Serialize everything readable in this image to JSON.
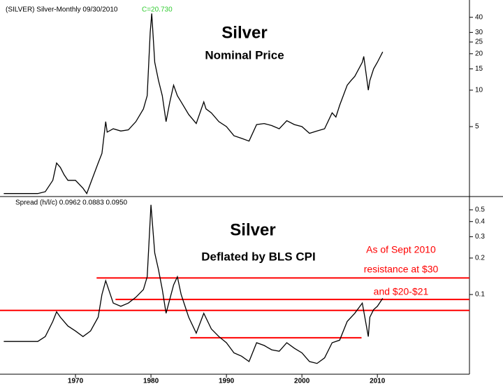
{
  "chart_data": [
    {
      "type": "line",
      "header": "(SILVER) Silver-Monthly   09/30/2010",
      "header_value": "C=20.730",
      "header_value_color": "#33cc33",
      "title": "Silver",
      "subtitle": "Nominal Price",
      "log_scale": true,
      "xlim": [
        1960,
        2022.2
      ],
      "ylim": [
        1.34,
        52
      ],
      "yticks": [
        5,
        10,
        15,
        20,
        25,
        30,
        40
      ],
      "series": [
        {
          "name": "Silver",
          "color": "#000000",
          "x": [
            1960.5,
            1963,
            1965,
            1966,
            1967,
            1967.5,
            1968,
            1968.5,
            1969,
            1970,
            1971,
            1971.5,
            1972,
            1973,
            1973.5,
            1974,
            1974.2,
            1975,
            1976,
            1977,
            1978,
            1979,
            1979.5,
            1979.9,
            1980.1,
            1980.5,
            1981,
            1981.5,
            1982,
            1982.5,
            1983,
            1983.5,
            1984,
            1985,
            1986,
            1987,
            1987.3,
            1988,
            1989,
            1990,
            1991,
            1992,
            1993,
            1994,
            1995,
            1996,
            1997,
            1998,
            1999,
            2000,
            2001,
            2002,
            2003,
            2004,
            2004.5,
            2005,
            2006,
            2006.5,
            2007,
            2008,
            2008.2,
            2008.8,
            2009,
            2009.5,
            2010,
            2010.7
          ],
          "values": [
            1.4,
            1.4,
            1.4,
            1.45,
            1.8,
            2.5,
            2.3,
            2.0,
            1.8,
            1.8,
            1.55,
            1.4,
            1.7,
            2.5,
            3.0,
            5.5,
            4.5,
            4.8,
            4.6,
            4.7,
            5.5,
            7,
            9,
            30,
            43,
            17,
            12,
            9,
            5.5,
            8,
            11,
            9,
            8,
            6.3,
            5.3,
            8,
            7,
            6.5,
            5.5,
            5,
            4.2,
            4,
            3.8,
            5.2,
            5.3,
            5.1,
            4.8,
            5.6,
            5.2,
            5,
            4.4,
            4.6,
            4.8,
            6.5,
            6,
            7.5,
            11,
            12,
            13,
            17,
            19,
            10,
            12,
            15,
            17,
            20.7
          ]
        }
      ]
    },
    {
      "type": "line",
      "header": "Spread (h/l/c)   0.0962   0.0883   0.0950",
      "title": "Silver",
      "subtitle": "Deflated by BLS CPI",
      "log_scale": true,
      "annotations": [
        "As of Sept 2010",
        "resistance at $30",
        "and $20-$21"
      ],
      "annotation_color": "#ff0000",
      "xlim": [
        1960,
        2022.2
      ],
      "xticks": [
        1970,
        1980,
        1990,
        2000,
        2010
      ],
      "ylim": [
        0.022,
        0.61
      ],
      "yticks": [
        0.1,
        0.2,
        0.3,
        0.4,
        0.5
      ],
      "reference_lines": [
        {
          "value": 0.137,
          "x": [
            1972.8,
            2022.2
          ]
        },
        {
          "value": 0.091,
          "x": [
            1975.3,
            2022.2
          ]
        },
        {
          "value": 0.074,
          "x": [
            1960,
            2022.2
          ]
        },
        {
          "value": 0.044,
          "x": [
            1985.2,
            2007.9
          ]
        }
      ],
      "reference_color": "#ff0000",
      "series": [
        {
          "name": "Silver deflated",
          "color": "#000000",
          "x": [
            1960.5,
            1963,
            1965,
            1966,
            1967,
            1967.5,
            1968,
            1969,
            1970,
            1971,
            1972,
            1973,
            1973.5,
            1974,
            1975,
            1976,
            1977,
            1978,
            1979,
            1979.5,
            1980,
            1980.5,
            1981,
            1981.5,
            1982,
            1983,
            1983.5,
            1984,
            1985,
            1986,
            1987,
            1988,
            1989,
            1990,
            1991,
            1992,
            1993,
            1994,
            1995,
            1996,
            1997,
            1998,
            1999,
            2000,
            2001,
            2002,
            2003,
            2004,
            2005,
            2006,
            2007,
            2008,
            2008.8,
            2009,
            2009.5,
            2010,
            2010.7
          ],
          "values": [
            0.041,
            0.041,
            0.041,
            0.045,
            0.06,
            0.072,
            0.065,
            0.055,
            0.05,
            0.045,
            0.05,
            0.065,
            0.1,
            0.13,
            0.085,
            0.08,
            0.085,
            0.095,
            0.11,
            0.14,
            0.55,
            0.22,
            0.16,
            0.11,
            0.07,
            0.12,
            0.14,
            0.1,
            0.065,
            0.048,
            0.07,
            0.052,
            0.045,
            0.04,
            0.033,
            0.031,
            0.028,
            0.04,
            0.038,
            0.035,
            0.034,
            0.04,
            0.036,
            0.033,
            0.028,
            0.027,
            0.03,
            0.04,
            0.042,
            0.06,
            0.07,
            0.085,
            0.045,
            0.065,
            0.075,
            0.08,
            0.093
          ]
        }
      ]
    }
  ]
}
